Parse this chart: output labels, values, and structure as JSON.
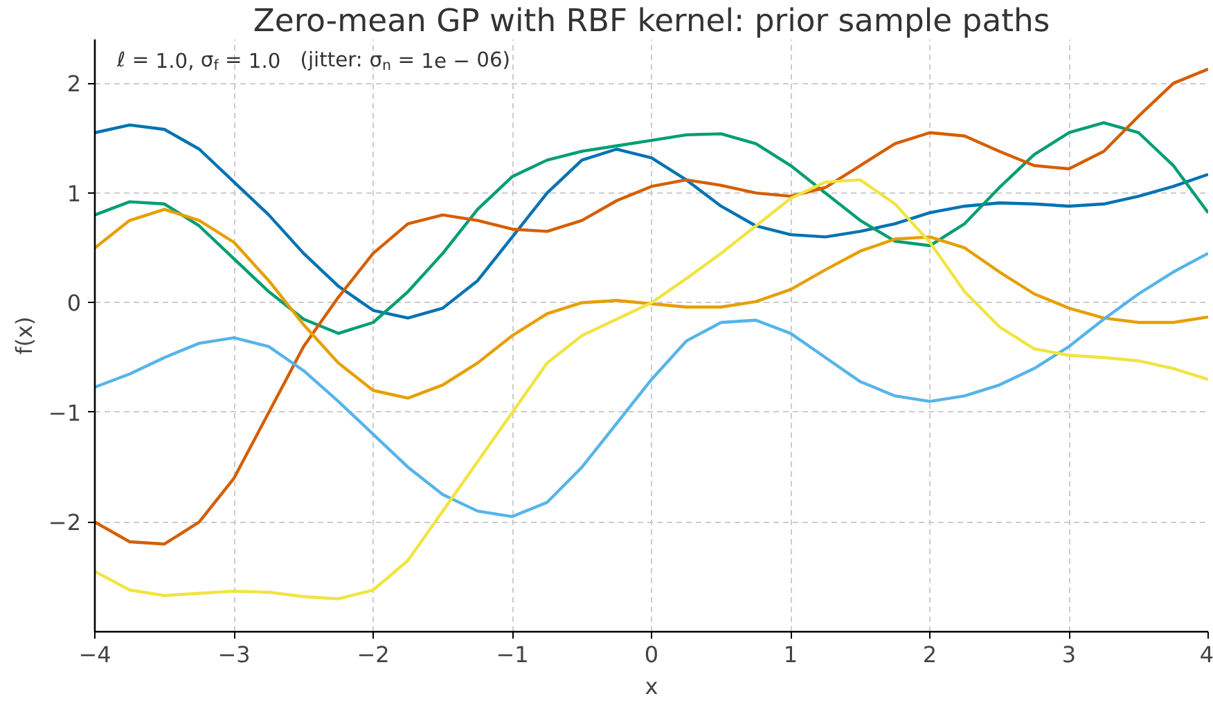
{
  "chart_data": {
    "type": "line",
    "title": "Zero-mean GP with RBF kernel: prior sample paths",
    "xlabel": "x",
    "ylabel": "f(x)",
    "annotations": [
      "ℓ = 1.0, σ$_{f}$ = 1.0   (jitter: σ$_{n}$ = 1e − 06)"
    ],
    "x": [
      -4,
      -3.75,
      -3.5,
      -3.25,
      -3,
      -2.75,
      -2.5,
      -2.25,
      -2,
      -1.75,
      -1.5,
      -1.25,
      -1,
      -0.75,
      -0.5,
      -0.25,
      0,
      0.25,
      0.5,
      0.75,
      1,
      1.25,
      1.5,
      1.75,
      2,
      2.25,
      2.5,
      2.75,
      3,
      3.25,
      3.5,
      3.75,
      4
    ],
    "series": [
      {
        "color": "#0072b2",
        "values": [
          1.55,
          1.62,
          1.58,
          1.4,
          1.1,
          0.8,
          0.45,
          0.15,
          -0.07,
          -0.14,
          -0.05,
          0.2,
          0.6,
          1.0,
          1.3,
          1.4,
          1.32,
          1.12,
          0.88,
          0.7,
          0.62,
          0.6,
          0.65,
          0.72,
          0.82,
          0.88,
          0.91,
          0.9,
          0.88,
          0.9,
          0.97,
          1.06,
          1.17
        ]
      },
      {
        "color": "#009e73",
        "values": [
          0.8,
          0.92,
          0.9,
          0.7,
          0.4,
          0.1,
          -0.15,
          -0.28,
          -0.18,
          0.1,
          0.45,
          0.85,
          1.15,
          1.3,
          1.38,
          1.43,
          1.48,
          1.53,
          1.54,
          1.45,
          1.25,
          1.0,
          0.75,
          0.56,
          0.52,
          0.72,
          1.05,
          1.35,
          1.55,
          1.64,
          1.55,
          1.25,
          0.82
        ]
      },
      {
        "color": "#d55e00",
        "values": [
          -2.0,
          -2.18,
          -2.2,
          -2.0,
          -1.6,
          -1.0,
          -0.4,
          0.05,
          0.45,
          0.72,
          0.8,
          0.75,
          0.67,
          0.65,
          0.75,
          0.93,
          1.06,
          1.12,
          1.07,
          1.0,
          0.97,
          1.05,
          1.25,
          1.45,
          1.55,
          1.52,
          1.38,
          1.25,
          1.22,
          1.38,
          1.7,
          2.0,
          2.13
        ]
      },
      {
        "color": "#e69f00",
        "values": [
          0.5,
          0.75,
          0.85,
          0.75,
          0.55,
          0.2,
          -0.2,
          -0.55,
          -0.8,
          -0.87,
          -0.75,
          -0.55,
          -0.3,
          -0.1,
          0.0,
          0.02,
          -0.01,
          -0.04,
          -0.04,
          0.01,
          0.12,
          0.3,
          0.47,
          0.58,
          0.6,
          0.5,
          0.28,
          0.08,
          -0.05,
          -0.14,
          -0.18,
          -0.18,
          -0.13
        ]
      },
      {
        "color": "#56b4e9",
        "values": [
          -0.77,
          -0.65,
          -0.5,
          -0.37,
          -0.32,
          -0.4,
          -0.62,
          -0.9,
          -1.2,
          -1.5,
          -1.75,
          -1.9,
          -1.95,
          -1.82,
          -1.5,
          -1.1,
          -0.7,
          -0.35,
          -0.18,
          -0.16,
          -0.28,
          -0.5,
          -0.72,
          -0.85,
          -0.9,
          -0.85,
          -0.75,
          -0.6,
          -0.4,
          -0.15,
          0.08,
          0.28,
          0.45
        ]
      },
      {
        "color": "#f0e442",
        "values": [
          -2.45,
          -2.62,
          -2.67,
          -2.65,
          -2.63,
          -2.64,
          -2.68,
          -2.7,
          -2.62,
          -2.35,
          -1.9,
          -1.45,
          -1.0,
          -0.55,
          -0.3,
          -0.15,
          0.0,
          0.22,
          0.45,
          0.7,
          0.95,
          1.1,
          1.12,
          0.9,
          0.55,
          0.1,
          -0.22,
          -0.42,
          -0.48,
          -0.5,
          -0.53,
          -0.6,
          -0.7
        ]
      }
    ],
    "xlim": [
      -4,
      4
    ],
    "ylim": [
      -3,
      2.4
    ],
    "xticks": [
      {
        "value": -4,
        "label": "−4"
      },
      {
        "value": -3,
        "label": "−3"
      },
      {
        "value": -2,
        "label": "−2"
      },
      {
        "value": -1,
        "label": "−1"
      },
      0,
      1,
      2,
      3,
      4
    ],
    "yticks": [
      {
        "value": -2,
        "label": "−2"
      },
      {
        "value": -1,
        "label": "−1"
      },
      0,
      1,
      2
    ],
    "grid": true,
    "line_style": "solid",
    "marker": "none"
  }
}
